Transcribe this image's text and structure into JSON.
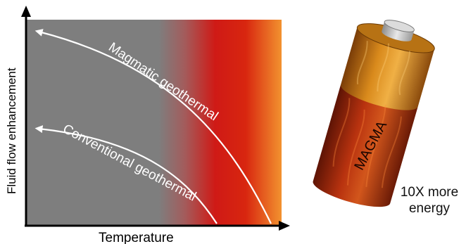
{
  "diagram": {
    "y_axis_label": "Fluid flow enhancement",
    "x_axis_label": "Temperature",
    "upper_curve_label": "Magmatic geothermal",
    "lower_curve_label": "Conventional geothermal"
  },
  "battery": {
    "label": "MAGMA",
    "note_line1": "10X more",
    "note_line2": "energy"
  },
  "colors": {
    "background_cool": "#7f7f7f",
    "background_hot_red": "#d4100f",
    "background_hot_orange": "#f08f2c",
    "curve": "#ffffff",
    "axis": "#000000",
    "battery_top": "#c9821a",
    "battery_bottom": "#b8320f"
  }
}
